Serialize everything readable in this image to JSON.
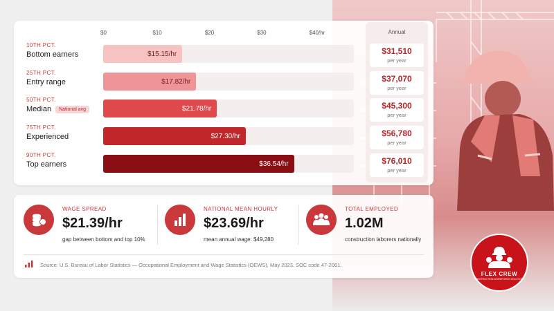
{
  "chart_data": {
    "type": "bar",
    "orientation": "horizontal",
    "xlim": [
      0,
      48
    ],
    "x_ticks": [
      "$0",
      "$10",
      "$20",
      "$30",
      "$40/hr"
    ],
    "annual_header": "Annual",
    "rows": [
      {
        "percentile": "10TH PCT.",
        "name": "Bottom earners",
        "value": 15.15,
        "label": "$15.15/hr",
        "annual": "$31,510",
        "annual_sub": "per year",
        "badge": "",
        "color": "#f6c2c2",
        "text_color": "#7a1c1e"
      },
      {
        "percentile": "25TH PCT.",
        "name": "Entry range",
        "value": 17.82,
        "label": "$17.82/hr",
        "annual": "$37,070",
        "annual_sub": "per year",
        "badge": "",
        "color": "#ef9597",
        "text_color": "#7a1c1e"
      },
      {
        "percentile": "50TH PCT.",
        "name": "Median",
        "value": 21.78,
        "label": "$21.78/hr",
        "annual": "$45,300",
        "annual_sub": "per year",
        "badge": "National avg",
        "color": "#e04a4d",
        "text_color": "#ffffff"
      },
      {
        "percentile": "75TH PCT.",
        "name": "Experienced",
        "value": 27.3,
        "label": "$27.30/hr",
        "annual": "$56,780",
        "annual_sub": "per year",
        "badge": "",
        "color": "#c2272b",
        "text_color": "#ffffff"
      },
      {
        "percentile": "90TH PCT.",
        "name": "Top earners",
        "value": 36.54,
        "label": "$36.54/hr",
        "annual": "$76,010",
        "annual_sub": "per year",
        "badge": "",
        "color": "#8a0f14",
        "text_color": "#ffffff"
      }
    ]
  },
  "stats": [
    {
      "icon": "coins-icon",
      "label": "WAGE SPREAD",
      "value": "$21.39/hr",
      "sub": "gap between bottom and top 10%"
    },
    {
      "icon": "bar-chart-icon",
      "label": "NATIONAL MEAN HOURLY",
      "value": "$23.69/hr",
      "sub": "mean annual wage: $49,280"
    },
    {
      "icon": "people-icon",
      "label": "TOTAL EMPLOYED",
      "value": "1.02M",
      "sub": "construction laborers nationally"
    }
  ],
  "source": "Source: U.S. Bureau of Labor Statistics — Occupational Employment and Wage Statistics (OEWS), May 2023. SOC code 47-2061.",
  "logo": {
    "name": "FLEX CREW",
    "tagline": "CONSTRUCTION WORKFORCE SOLUTIONS"
  },
  "colors": {
    "accent": "#c9383b",
    "brand": "#c8131a"
  }
}
